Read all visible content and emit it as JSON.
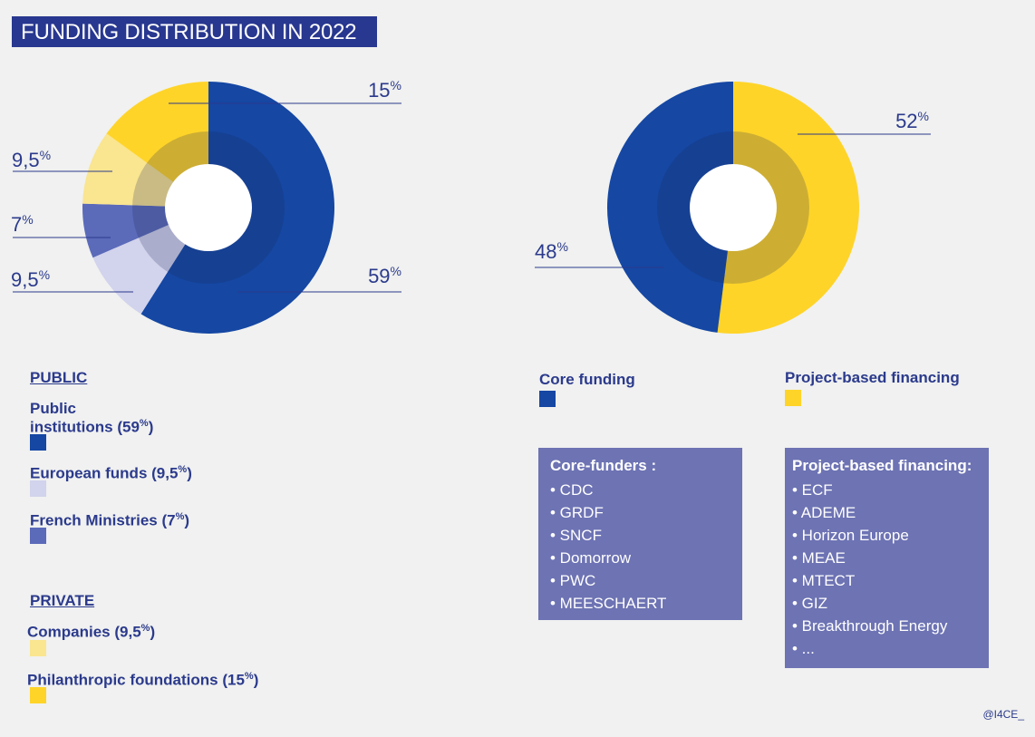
{
  "title": "FUNDING DISTRIBUTION IN 2022",
  "credit": "@I4CE_",
  "colors": {
    "blue": "#1547a3",
    "light_lavender": "#d2d3ec",
    "mid_blue": "#5b6ab9",
    "light_yellow": "#fae590",
    "yellow": "#ffd429",
    "box": "#6d73b3",
    "text": "#2b3a8c"
  },
  "chart_data": [
    {
      "type": "pie",
      "subtype": "donut",
      "slices": [
        {
          "label": "Public institutions",
          "value": 59,
          "display": "59",
          "color": "#1547a3"
        },
        {
          "label": "European funds",
          "value": 9.5,
          "display": "9,5",
          "color": "#d2d3ec"
        },
        {
          "label": "French Ministries",
          "value": 7,
          "display": "7",
          "color": "#5b6ab9"
        },
        {
          "label": "Companies",
          "value": 9.5,
          "display": "9,5",
          "color": "#fae590"
        },
        {
          "label": "Philanthropic foundations",
          "value": 15,
          "display": "15",
          "color": "#ffd429"
        }
      ]
    },
    {
      "type": "pie",
      "subtype": "donut",
      "slices": [
        {
          "label": "Project-based financing",
          "value": 52,
          "display": "52",
          "color": "#ffd429"
        },
        {
          "label": "Core funding",
          "value": 48,
          "display": "48",
          "color": "#1547a3"
        }
      ]
    }
  ],
  "legend_left": {
    "public_heading": "PUBLIC",
    "private_heading": "PRIVATE",
    "items": [
      {
        "line1": "Public",
        "line2": "institutions (59",
        "pct": "%",
        "close": ")"
      },
      {
        "line1": "European funds (9,5",
        "pct": "%",
        "close": ")"
      },
      {
        "line1": "French Ministries (7",
        "pct": "%",
        "close": ")"
      },
      {
        "line1": "Companies (9,5",
        "pct": "%",
        "close": ")"
      },
      {
        "line1": "Philanthropic foundations (15",
        "pct": "%",
        "close": ")"
      }
    ]
  },
  "legend_right": {
    "core": "Core funding",
    "project": "Project-based financing"
  },
  "core_box": {
    "title": "Core-funders :",
    "items": [
      "• CDC",
      "• GRDF",
      "• SNCF",
      "• Domorrow",
      "• PWC",
      "• MEESCHAERT"
    ]
  },
  "project_box": {
    "title": "Project-based financing:",
    "items": [
      "• ECF",
      "• ADEME",
      "• Horizon Europe",
      "• MEAE",
      "• MTECT",
      "• GIZ",
      "• Breakthrough Energy",
      "• ..."
    ]
  },
  "percent_sign": "%"
}
